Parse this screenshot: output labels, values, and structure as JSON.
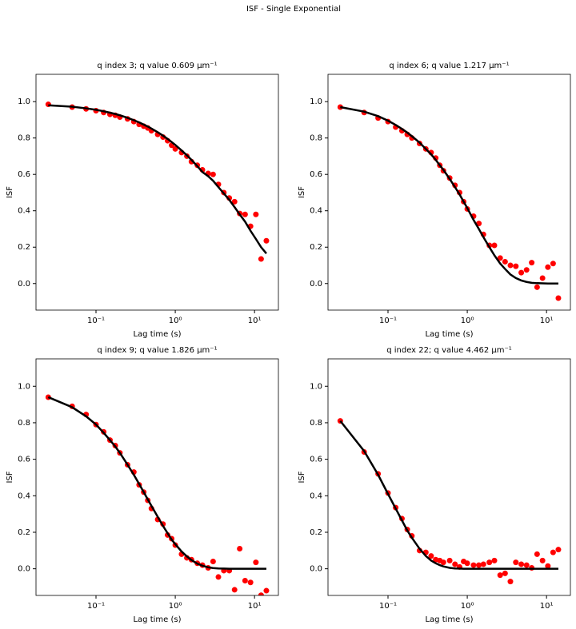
{
  "title": "ISF - Single Exponential",
  "chart_data": [
    {
      "type": "scatter",
      "title": "q index 3; q value 0.609 μm⁻¹",
      "xlabel": "Lag time (s)",
      "ylabel": "ISF",
      "xscale": "log",
      "xlim": [
        0.0175,
        20
      ],
      "ylim": [
        -0.146,
        1.15
      ],
      "xticks": [
        {
          "value": 0.1,
          "label": "10⁻¹"
        },
        {
          "value": 1,
          "label": "10⁰"
        },
        {
          "value": 10,
          "label": "10¹"
        }
      ],
      "yticks": [
        {
          "value": 0,
          "label": "0.0"
        },
        0.2,
        0.4,
        0.6,
        0.8,
        {
          "value": 1,
          "label": "1.0"
        }
      ],
      "x": [
        0.025,
        0.05,
        0.075,
        0.1,
        0.125,
        0.15,
        0.175,
        0.2,
        0.25,
        0.3,
        0.35,
        0.4,
        0.45,
        0.5,
        0.6,
        0.7,
        0.8,
        0.9,
        1.0,
        1.2,
        1.4,
        1.6,
        1.9,
        2.2,
        2.6,
        3.0,
        3.5,
        4.1,
        4.8,
        5.6,
        6.5,
        7.6,
        8.9,
        10.4,
        12.1,
        14.1
      ],
      "series": [
        {
          "kind": "points",
          "color": "#ff0000",
          "values": [
            0.985,
            0.97,
            0.96,
            0.95,
            0.94,
            0.93,
            0.925,
            0.915,
            0.905,
            0.89,
            0.875,
            0.865,
            0.855,
            0.84,
            0.82,
            0.805,
            0.785,
            0.76,
            0.74,
            0.72,
            0.7,
            0.67,
            0.65,
            0.625,
            0.605,
            0.6,
            0.545,
            0.5,
            0.47,
            0.45,
            0.385,
            0.38,
            0.315,
            0.38,
            0.135,
            0.235
          ]
        },
        {
          "kind": "line",
          "color": "#000000",
          "values": [
            0.98,
            0.972,
            0.963,
            0.955,
            0.947,
            0.939,
            0.932,
            0.925,
            0.911,
            0.898,
            0.886,
            0.874,
            0.863,
            0.852,
            0.832,
            0.813,
            0.795,
            0.778,
            0.762,
            0.732,
            0.705,
            0.68,
            0.645,
            0.613,
            0.59,
            0.565,
            0.53,
            0.495,
            0.46,
            0.42,
            0.38,
            0.34,
            0.29,
            0.245,
            0.2,
            0.165
          ]
        }
      ]
    },
    {
      "type": "scatter",
      "title": "q index 6; q value 1.217 μm⁻¹",
      "xlabel": "Lag time (s)",
      "ylabel": "ISF",
      "xscale": "log",
      "xlim": [
        0.0175,
        20
      ],
      "ylim": [
        -0.146,
        1.15
      ],
      "xticks": [
        {
          "value": 0.1,
          "label": "10⁻¹"
        },
        {
          "value": 1,
          "label": "10⁰"
        },
        {
          "value": 10,
          "label": "10¹"
        }
      ],
      "yticks": [
        {
          "value": 0,
          "label": "0.0"
        },
        0.2,
        0.4,
        0.6,
        0.8,
        {
          "value": 1,
          "label": "1.0"
        }
      ],
      "x": [
        0.025,
        0.05,
        0.075,
        0.1,
        0.125,
        0.15,
        0.175,
        0.2,
        0.25,
        0.3,
        0.35,
        0.4,
        0.45,
        0.5,
        0.6,
        0.7,
        0.8,
        0.9,
        1.0,
        1.2,
        1.4,
        1.6,
        1.9,
        2.2,
        2.6,
        3.0,
        3.5,
        4.1,
        4.8,
        5.6,
        6.5,
        7.6,
        8.9,
        10.4,
        12.1,
        14.1
      ],
      "series": [
        {
          "kind": "points",
          "color": "#ff0000",
          "values": [
            0.97,
            0.94,
            0.91,
            0.89,
            0.86,
            0.84,
            0.82,
            0.8,
            0.77,
            0.74,
            0.72,
            0.69,
            0.65,
            0.62,
            0.58,
            0.54,
            0.5,
            0.45,
            0.41,
            0.37,
            0.33,
            0.27,
            0.21,
            0.21,
            0.14,
            0.12,
            0.1,
            0.095,
            0.06,
            0.075,
            0.115,
            -0.02,
            0.03,
            0.09,
            0.11,
            -0.08
          ]
        },
        {
          "kind": "line",
          "color": "#000000",
          "values": [
            0.97,
            0.945,
            0.92,
            0.895,
            0.872,
            0.85,
            0.83,
            0.81,
            0.775,
            0.74,
            0.71,
            0.68,
            0.65,
            0.625,
            0.575,
            0.53,
            0.49,
            0.45,
            0.415,
            0.35,
            0.3,
            0.255,
            0.2,
            0.155,
            0.11,
            0.08,
            0.05,
            0.03,
            0.017,
            0.009,
            0.004,
            0.002,
            0.001,
            0,
            0,
            0
          ]
        }
      ]
    },
    {
      "type": "scatter",
      "title": "q index 9; q value 1.826 μm⁻¹",
      "xlabel": "Lag time (s)",
      "ylabel": "ISF",
      "xscale": "log",
      "xlim": [
        0.0175,
        20
      ],
      "ylim": [
        -0.146,
        1.15
      ],
      "xticks": [
        {
          "value": 0.1,
          "label": "10⁻¹"
        },
        {
          "value": 1,
          "label": "10⁰"
        },
        {
          "value": 10,
          "label": "10¹"
        }
      ],
      "yticks": [
        {
          "value": 0,
          "label": "0.0"
        },
        0.2,
        0.4,
        0.6,
        0.8,
        {
          "value": 1,
          "label": "1.0"
        }
      ],
      "x": [
        0.025,
        0.05,
        0.075,
        0.1,
        0.125,
        0.15,
        0.175,
        0.2,
        0.25,
        0.3,
        0.35,
        0.4,
        0.45,
        0.5,
        0.6,
        0.7,
        0.8,
        0.9,
        1.0,
        1.2,
        1.4,
        1.6,
        1.9,
        2.2,
        2.6,
        3.0,
        3.5,
        4.1,
        4.8,
        5.6,
        6.5,
        7.6,
        8.9,
        10.4,
        12.1,
        14.1
      ],
      "series": [
        {
          "kind": "points",
          "color": "#ff0000",
          "values": [
            0.94,
            0.89,
            0.845,
            0.79,
            0.75,
            0.705,
            0.675,
            0.635,
            0.57,
            0.53,
            0.46,
            0.42,
            0.375,
            0.33,
            0.27,
            0.245,
            0.185,
            0.165,
            0.13,
            0.08,
            0.06,
            0.05,
            0.03,
            0.02,
            0.005,
            0.04,
            -0.045,
            -0.01,
            -0.01,
            -0.115,
            0.11,
            -0.065,
            -0.075,
            0.035,
            -0.145,
            -0.12
          ]
        },
        {
          "kind": "line",
          "color": "#000000",
          "values": [
            0.94,
            0.885,
            0.835,
            0.79,
            0.745,
            0.705,
            0.67,
            0.635,
            0.57,
            0.515,
            0.465,
            0.42,
            0.38,
            0.345,
            0.285,
            0.235,
            0.195,
            0.16,
            0.135,
            0.095,
            0.068,
            0.048,
            0.028,
            0.017,
            0.008,
            0.004,
            0.002,
            0.001,
            0,
            0,
            0,
            0,
            0,
            0,
            0,
            0
          ]
        }
      ]
    },
    {
      "type": "scatter",
      "title": "q index 22; q value 4.462 μm⁻¹",
      "xlabel": "Lag time (s)",
      "ylabel": "ISF",
      "xscale": "log",
      "xlim": [
        0.0175,
        20
      ],
      "ylim": [
        -0.146,
        1.15
      ],
      "xticks": [
        {
          "value": 0.1,
          "label": "10⁻¹"
        },
        {
          "value": 1,
          "label": "10⁰"
        },
        {
          "value": 10,
          "label": "10¹"
        }
      ],
      "yticks": [
        {
          "value": 0,
          "label": "0.0"
        },
        0.2,
        0.4,
        0.6,
        0.8,
        {
          "value": 1,
          "label": "1.0"
        }
      ],
      "x": [
        0.025,
        0.05,
        0.075,
        0.1,
        0.125,
        0.15,
        0.175,
        0.2,
        0.25,
        0.3,
        0.35,
        0.4,
        0.45,
        0.5,
        0.6,
        0.7,
        0.8,
        0.9,
        1.0,
        1.2,
        1.4,
        1.6,
        1.9,
        2.2,
        2.6,
        3.0,
        3.5,
        4.1,
        4.8,
        5.6,
        6.5,
        7.6,
        8.9,
        10.4,
        12.1,
        14.1
      ],
      "series": [
        {
          "kind": "points",
          "color": "#ff0000",
          "values": [
            0.81,
            0.64,
            0.52,
            0.415,
            0.335,
            0.275,
            0.215,
            0.18,
            0.1,
            0.09,
            0.07,
            0.05,
            0.045,
            0.035,
            0.045,
            0.025,
            0.01,
            0.04,
            0.03,
            0.02,
            0.02,
            0.025,
            0.035,
            0.045,
            -0.035,
            -0.025,
            -0.07,
            0.035,
            0.025,
            0.02,
            0.005,
            0.08,
            0.045,
            0.015,
            0.09,
            0.105
          ]
        },
        {
          "kind": "line",
          "color": "#000000",
          "values": [
            0.81,
            0.645,
            0.515,
            0.41,
            0.33,
            0.265,
            0.21,
            0.17,
            0.11,
            0.07,
            0.045,
            0.03,
            0.02,
            0.013,
            0.005,
            0.002,
            0.001,
            0,
            0,
            0,
            0,
            0,
            0,
            0,
            0,
            0,
            0,
            0,
            0,
            0,
            0,
            0,
            0,
            0,
            0,
            0
          ]
        }
      ]
    }
  ]
}
